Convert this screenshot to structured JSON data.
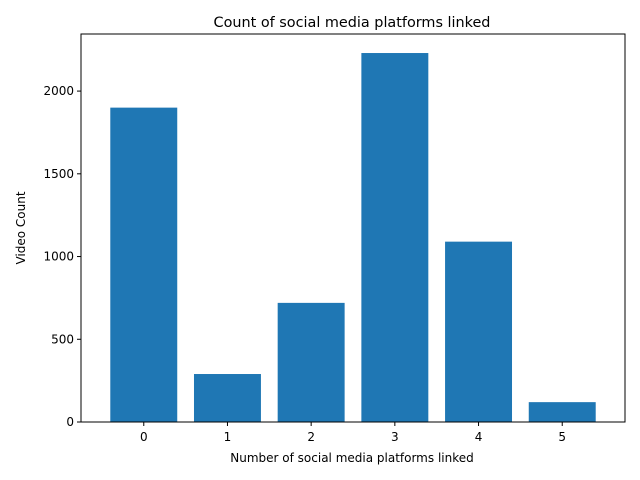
{
  "chart_data": {
    "type": "bar",
    "title": "Count of social media platforms linked",
    "xlabel": "Number of social media platforms linked",
    "ylabel": "Video Count",
    "categories": [
      "0",
      "1",
      "2",
      "3",
      "4",
      "5"
    ],
    "values": [
      1900,
      290,
      720,
      2230,
      1090,
      120
    ],
    "ylim": [
      0,
      2345
    ],
    "yticks": [
      0,
      500,
      1000,
      1500,
      2000
    ],
    "bar_color": "#1f77b4",
    "grid": false,
    "legend": false
  }
}
